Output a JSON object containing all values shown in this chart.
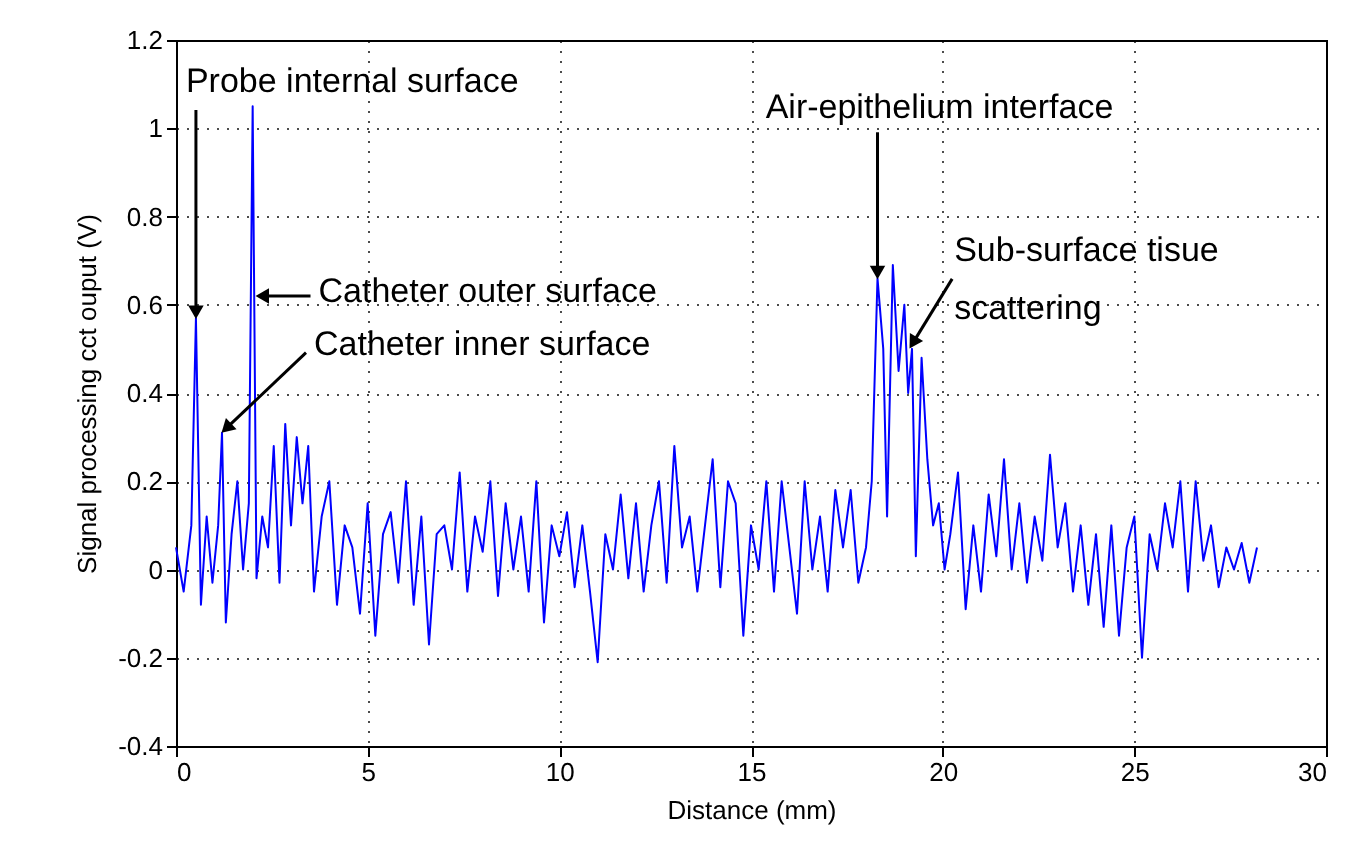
{
  "chart_data": {
    "type": "line",
    "xlabel": "Distance (mm)",
    "ylabel": "Signal processing cct ouput (V)",
    "xlim": [
      0,
      30
    ],
    "ylim": [
      -0.4,
      1.2
    ],
    "xticks": [
      0,
      5,
      10,
      15,
      20,
      25,
      30
    ],
    "yticks": [
      -0.4,
      -0.2,
      0,
      0.2,
      0.4,
      0.6,
      0.8,
      1,
      1.2
    ],
    "grid": true,
    "x": [
      0,
      0.2,
      0.4,
      0.52,
      0.65,
      0.8,
      0.95,
      1.1,
      1.2,
      1.3,
      1.45,
      1.6,
      1.75,
      1.9,
      2.0,
      2.1,
      2.25,
      2.4,
      2.55,
      2.7,
      2.85,
      3.0,
      3.15,
      3.3,
      3.45,
      3.6,
      3.8,
      4.0,
      4.2,
      4.4,
      4.6,
      4.8,
      5.0,
      5.2,
      5.4,
      5.6,
      5.8,
      6.0,
      6.2,
      6.4,
      6.6,
      6.8,
      7.0,
      7.2,
      7.4,
      7.6,
      7.8,
      8.0,
      8.2,
      8.4,
      8.6,
      8.8,
      9.0,
      9.2,
      9.4,
      9.6,
      9.8,
      10.0,
      10.2,
      10.4,
      10.6,
      10.8,
      11.0,
      11.2,
      11.4,
      11.6,
      11.8,
      12.0,
      12.2,
      12.4,
      12.6,
      12.8,
      13.0,
      13.2,
      13.4,
      13.6,
      13.8,
      14.0,
      14.2,
      14.4,
      14.6,
      14.8,
      15.0,
      15.2,
      15.4,
      15.6,
      15.8,
      16.0,
      16.2,
      16.4,
      16.6,
      16.8,
      17.0,
      17.2,
      17.4,
      17.6,
      17.8,
      18.0,
      18.15,
      18.3,
      18.45,
      18.55,
      18.7,
      18.85,
      19.0,
      19.1,
      19.2,
      19.3,
      19.45,
      19.6,
      19.75,
      19.9,
      20.05,
      20.2,
      20.4,
      20.6,
      20.8,
      21.0,
      21.2,
      21.4,
      21.6,
      21.8,
      22.0,
      22.2,
      22.4,
      22.6,
      22.8,
      23.0,
      23.2,
      23.4,
      23.6,
      23.8,
      24.0,
      24.2,
      24.4,
      24.6,
      24.8,
      25.0,
      25.2,
      25.4,
      25.6,
      25.8,
      26.0,
      26.2,
      26.4,
      26.6,
      26.8,
      27.0,
      27.2,
      27.4,
      27.6,
      27.8,
      28.0,
      28.2
    ],
    "series": [
      {
        "color": "#0000ff",
        "values": [
          0.05,
          -0.05,
          0.1,
          0.57,
          -0.08,
          0.12,
          -0.03,
          0.1,
          0.31,
          -0.12,
          0.08,
          0.2,
          0.0,
          0.15,
          1.05,
          -0.02,
          0.12,
          0.05,
          0.28,
          -0.03,
          0.33,
          0.1,
          0.3,
          0.15,
          0.28,
          -0.05,
          0.12,
          0.2,
          -0.08,
          0.1,
          0.05,
          -0.1,
          0.15,
          -0.15,
          0.08,
          0.13,
          -0.03,
          0.2,
          -0.08,
          0.12,
          -0.17,
          0.08,
          0.1,
          0.0,
          0.22,
          -0.05,
          0.12,
          0.04,
          0.2,
          -0.06,
          0.15,
          0.0,
          0.12,
          -0.05,
          0.2,
          -0.12,
          0.1,
          0.03,
          0.13,
          -0.04,
          0.1,
          -0.05,
          -0.21,
          0.08,
          0.0,
          0.17,
          -0.02,
          0.15,
          -0.05,
          0.1,
          0.2,
          -0.03,
          0.28,
          0.05,
          0.12,
          -0.05,
          0.1,
          0.25,
          -0.04,
          0.2,
          0.15,
          -0.15,
          0.1,
          0.0,
          0.2,
          -0.05,
          0.2,
          0.05,
          -0.1,
          0.2,
          0.0,
          0.12,
          -0.05,
          0.18,
          0.05,
          0.18,
          -0.03,
          0.05,
          0.2,
          0.66,
          0.5,
          0.12,
          0.69,
          0.45,
          0.6,
          0.4,
          0.5,
          0.03,
          0.48,
          0.25,
          0.1,
          0.15,
          0.0,
          0.08,
          0.22,
          -0.09,
          0.1,
          -0.05,
          0.17,
          0.03,
          0.25,
          0.0,
          0.15,
          -0.03,
          0.12,
          0.02,
          0.26,
          0.05,
          0.15,
          -0.05,
          0.1,
          -0.08,
          0.08,
          -0.13,
          0.1,
          -0.15,
          0.05,
          0.12,
          -0.2,
          0.08,
          0.0,
          0.15,
          0.05,
          0.2,
          -0.05,
          0.2,
          0.02,
          0.1,
          -0.04,
          0.05,
          0.0,
          0.06,
          -0.03,
          0.05
        ]
      }
    ],
    "annotations": [
      {
        "text": "Probe internal surface",
        "x": 0.52,
        "y": 0.57
      },
      {
        "text": "Catheter inner surface",
        "x": 1.2,
        "y": 0.31
      },
      {
        "text": "Catheter outer surface",
        "x": 2.1,
        "y": 0.62
      },
      {
        "text": "Air-epithelium interface",
        "x": 18.3,
        "y": 0.66
      },
      {
        "text": "Sub-surface tisue\nscattering",
        "x": 19.1,
        "y": 0.5
      }
    ]
  }
}
